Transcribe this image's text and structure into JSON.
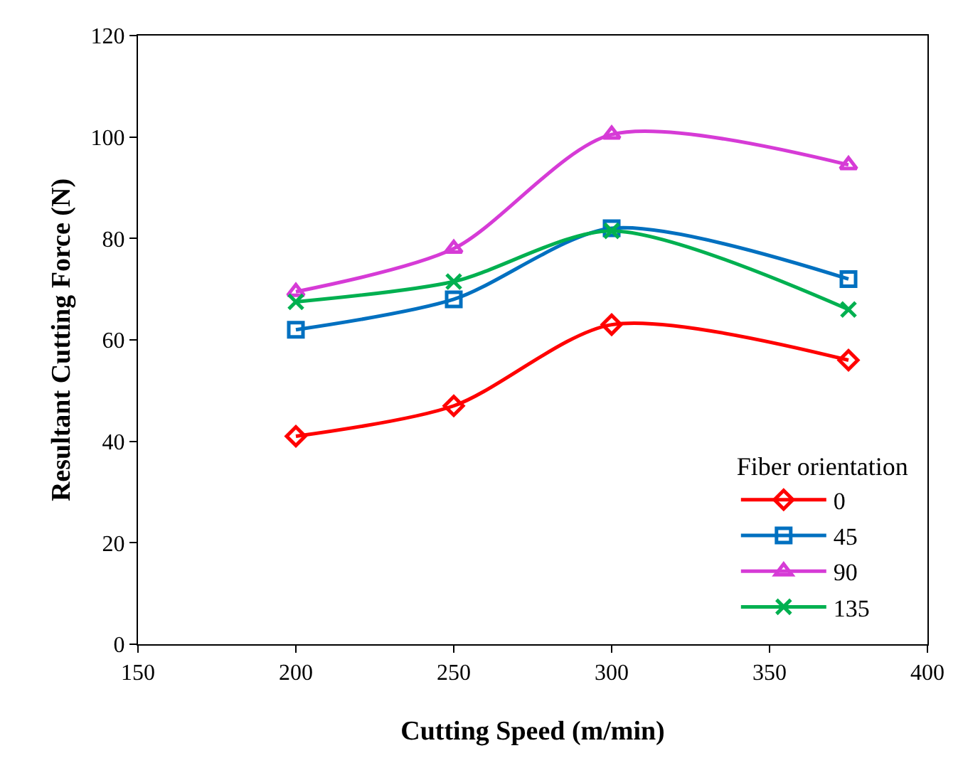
{
  "chart_data": {
    "type": "line",
    "xlabel": "Cutting Speed (m/min)",
    "ylabel": "Resultant Cutting Force (N)",
    "legend_title": "Fiber orientation",
    "x": [
      200,
      250,
      300,
      375
    ],
    "series": [
      {
        "name": "0",
        "color": "#ff0000",
        "marker": "diamond",
        "values": [
          41,
          47,
          63,
          56
        ]
      },
      {
        "name": "45",
        "color": "#0070c0",
        "marker": "square",
        "values": [
          62,
          68,
          82,
          72
        ]
      },
      {
        "name": "90",
        "color": "#d63bd6",
        "marker": "triangle",
        "values": [
          69.5,
          78,
          100.5,
          94.5
        ]
      },
      {
        "name": "135",
        "color": "#00b050",
        "marker": "cross",
        "values": [
          67.5,
          71.5,
          81.5,
          66
        ]
      }
    ],
    "xlim": [
      150,
      400
    ],
    "xticks": [
      150,
      200,
      250,
      300,
      350,
      400
    ],
    "ylim": [
      0,
      120
    ],
    "yticks": [
      0,
      20,
      40,
      60,
      80,
      100,
      120
    ],
    "grid": false,
    "legend": "bottom right"
  }
}
